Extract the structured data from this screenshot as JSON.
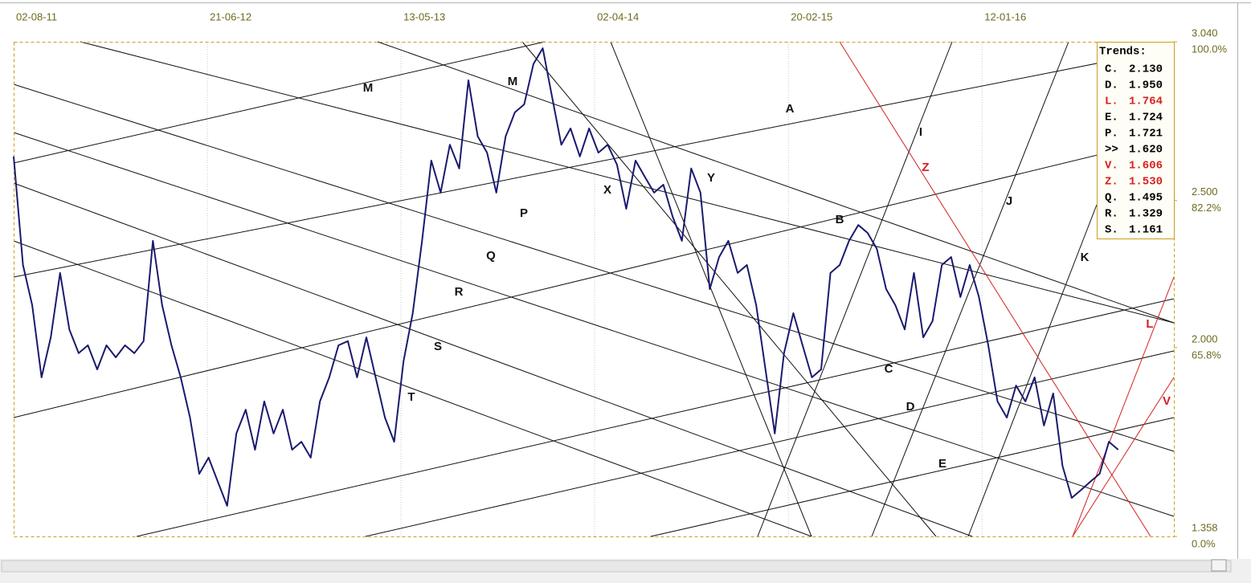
{
  "chart_data": {
    "type": "line",
    "color": "#1a1a6e",
    "values": [
      2.65,
      2.281,
      2.144,
      1.899,
      2.035,
      2.254,
      2.062,
      1.981,
      2.008,
      1.926,
      2.008,
      1.967,
      2.008,
      1.981,
      2.022,
      2.363,
      2.144,
      2.008,
      1.899,
      1.762,
      1.571,
      1.626,
      1.544,
      1.462,
      1.708,
      1.789,
      1.653,
      1.817,
      1.708,
      1.789,
      1.653,
      1.68,
      1.626,
      1.817,
      1.899,
      2.008,
      2.022,
      1.899,
      2.035,
      1.899,
      1.762,
      1.68,
      1.953,
      2.117,
      2.363,
      2.636,
      2.527,
      2.69,
      2.609,
      2.909,
      2.718,
      2.663,
      2.527,
      2.718,
      2.8,
      2.827,
      2.964,
      3.018,
      2.854,
      2.69,
      2.745,
      2.65,
      2.745,
      2.663,
      2.69,
      2.622,
      2.472,
      2.636,
      2.581,
      2.527,
      2.554,
      2.445,
      2.363,
      2.609,
      2.527,
      2.199,
      2.308,
      2.363,
      2.254,
      2.281,
      2.144,
      1.926,
      1.708,
      1.981,
      2.117,
      2.008,
      1.899,
      1.926,
      2.254,
      2.281,
      2.363,
      2.417,
      2.39,
      2.336,
      2.199,
      2.144,
      2.062,
      2.254,
      2.035,
      2.09,
      2.281,
      2.308,
      2.172,
      2.281,
      2.172,
      2.008,
      1.817,
      1.762,
      1.871,
      1.817,
      1.899,
      1.735,
      1.844,
      1.598,
      1.489,
      1.516,
      1.544,
      1.571,
      1.68,
      1.653
    ],
    "xlim": [
      0,
      125
    ],
    "xticks": [
      {
        "value": 0,
        "label": "02-08-11"
      },
      {
        "value": 20.87,
        "label": "21-06-12"
      },
      {
        "value": 41.74,
        "label": "13-05-13"
      },
      {
        "value": 62.6,
        "label": "02-04-14"
      },
      {
        "value": 83.47,
        "label": "20-02-15"
      },
      {
        "value": 104.33,
        "label": "12-01-16"
      }
    ],
    "ylim": [
      1.358,
      3.04
    ],
    "yticks": [
      {
        "value": 3.04,
        "label": "3.040"
      },
      {
        "value": 2.5,
        "label": "2.500"
      },
      {
        "value": 2.0,
        "label": "2.000"
      },
      {
        "value": 1.358,
        "label": "1.358"
      }
    ],
    "ytick_percent_labels": [
      "100.0%",
      "82.2%",
      "65.8%",
      "0.0%"
    ],
    "grid": true,
    "annotations": [
      {
        "text": "M",
        "color": "#111111"
      },
      {
        "text": "M",
        "color": "#111111"
      },
      {
        "text": "A",
        "color": "#111111"
      },
      {
        "text": "I",
        "color": "#111111"
      },
      {
        "text": "Z",
        "color": "#d42020"
      },
      {
        "text": "P",
        "color": "#111111"
      },
      {
        "text": "X",
        "color": "#111111"
      },
      {
        "text": "Y",
        "color": "#111111"
      },
      {
        "text": "Q",
        "color": "#111111"
      },
      {
        "text": "R",
        "color": "#111111"
      },
      {
        "text": "S",
        "color": "#111111"
      },
      {
        "text": "T",
        "color": "#111111"
      },
      {
        "text": "B",
        "color": "#111111"
      },
      {
        "text": "J",
        "color": "#111111"
      },
      {
        "text": "K",
        "color": "#111111"
      },
      {
        "text": "C",
        "color": "#111111"
      },
      {
        "text": "D",
        "color": "#111111"
      },
      {
        "text": "E",
        "color": "#111111"
      },
      {
        "text": "L",
        "color": "#d42020"
      },
      {
        "text": "V",
        "color": "#d42020"
      }
    ],
    "legend": {
      "title": "Trends:",
      "entries": [
        {
          "label": "C.",
          "value": "2.130",
          "color": "#000000"
        },
        {
          "label": "D.",
          "value": "1.950",
          "color": "#000000"
        },
        {
          "label": "L.",
          "value": "1.764",
          "color": "#d42020"
        },
        {
          "label": "E.",
          "value": "1.724",
          "color": "#000000"
        },
        {
          "label": "P.",
          "value": "1.721",
          "color": "#000000"
        },
        {
          "label": ">>",
          "value": "1.620",
          "color": "#000000"
        },
        {
          "label": "V.",
          "value": "1.606",
          "color": "#d42020"
        },
        {
          "label": "Z.",
          "value": "1.530",
          "color": "#d42020"
        },
        {
          "label": "Q.",
          "value": "1.495",
          "color": "#000000"
        },
        {
          "label": "R.",
          "value": "1.329",
          "color": "#000000"
        },
        {
          "label": "S.",
          "value": "1.161",
          "color": "#000000"
        }
      ]
    }
  }
}
